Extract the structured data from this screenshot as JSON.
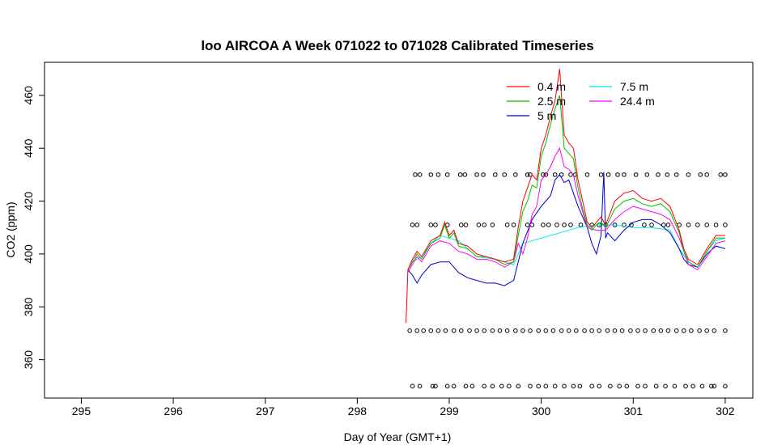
{
  "chart_data": {
    "type": "line",
    "title": "loo AIRCOA A  Week 071022 to 071028  Calibrated Timeseries",
    "xlabel": "Day of Year (GMT+1)",
    "ylabel": "CO2 (ppm)",
    "xlim": [
      294.6,
      302.3
    ],
    "ylim": [
      345.5,
      472.5
    ],
    "x_ticks": [
      295,
      296,
      297,
      298,
      299,
      300,
      301,
      302
    ],
    "y_ticks": [
      360,
      380,
      400,
      420,
      440,
      460
    ],
    "grid": false,
    "legend_position": "top-right",
    "legend": [
      "0.4 m",
      "2.5 m",
      "5 m",
      "7.5 m",
      "24.4 m"
    ],
    "colors": {
      "0.4 m": "#ff0000",
      "2.5 m": "#00c000",
      "5 m": "#0000cc",
      "7.5 m": "#00e5ee",
      "24.4 m": "#ff00ff",
      "markers": "#000000"
    },
    "series": [
      {
        "name": "0.4 m",
        "x": [
          298.53,
          298.55,
          298.6,
          298.65,
          298.7,
          298.8,
          298.9,
          298.95,
          299.0,
          299.05,
          299.1,
          299.2,
          299.3,
          299.4,
          299.5,
          299.6,
          299.7,
          299.75,
          299.8,
          299.85,
          299.9,
          299.95,
          300.0,
          300.05,
          300.1,
          300.15,
          300.2,
          300.25,
          300.3,
          300.35,
          300.4,
          300.45,
          300.5,
          300.55,
          300.6,
          300.65,
          300.7,
          300.8,
          300.9,
          301.0,
          301.1,
          301.2,
          301.3,
          301.4,
          301.5,
          301.55,
          301.6,
          301.7,
          301.8,
          301.9,
          302.0
        ],
        "y": [
          374,
          394,
          398,
          401,
          399,
          405,
          407,
          412,
          407,
          409,
          404,
          403,
          400,
          399,
          398,
          397,
          398,
          410,
          420,
          425,
          430,
          428,
          440,
          445,
          452,
          458,
          470,
          445,
          442,
          440,
          428,
          420,
          412,
          410,
          412,
          414,
          411,
          420,
          423,
          424,
          421,
          420,
          421,
          418,
          409,
          402,
          398,
          396,
          402,
          407,
          407
        ]
      },
      {
        "name": "2.5 m",
        "x": [
          298.55,
          298.6,
          298.65,
          298.7,
          298.8,
          298.9,
          298.95,
          299.0,
          299.05,
          299.1,
          299.2,
          299.3,
          299.4,
          299.5,
          299.6,
          299.7,
          299.75,
          299.8,
          299.85,
          299.9,
          299.95,
          300.0,
          300.05,
          300.1,
          300.15,
          300.2,
          300.25,
          300.3,
          300.35,
          300.4,
          300.45,
          300.5,
          300.55,
          300.6,
          300.65,
          300.7,
          300.8,
          300.9,
          301.0,
          301.1,
          301.2,
          301.3,
          301.4,
          301.5,
          301.55,
          301.6,
          301.7,
          301.8,
          301.9,
          302.0
        ],
        "y": [
          394,
          397,
          400,
          398,
          404,
          406,
          411,
          406,
          408,
          403,
          402,
          399,
          399,
          398,
          396,
          397,
          407,
          416,
          420,
          426,
          425,
          437,
          442,
          449,
          455,
          460,
          440,
          438,
          436,
          425,
          417,
          411,
          409,
          411,
          412,
          410,
          417,
          420,
          421,
          419,
          418,
          419,
          416,
          408,
          401,
          397,
          395,
          401,
          406,
          406
        ]
      },
      {
        "name": "5 m",
        "x": [
          298.55,
          298.6,
          298.65,
          298.7,
          298.8,
          298.9,
          299.0,
          299.1,
          299.2,
          299.3,
          299.4,
          299.5,
          299.6,
          299.7,
          299.75,
          299.8,
          299.9,
          300.0,
          300.1,
          300.15,
          300.2,
          300.25,
          300.3,
          300.4,
          300.5,
          300.55,
          300.6,
          300.65,
          300.68,
          300.7,
          300.72,
          300.8,
          300.9,
          301.0,
          301.1,
          301.2,
          301.3,
          301.4,
          301.5,
          301.55,
          301.6,
          301.7,
          301.8,
          301.9,
          302.0
        ],
        "y": [
          394,
          392,
          389,
          392,
          396,
          397,
          397,
          393,
          391,
          390,
          389,
          389,
          388,
          390,
          397,
          404,
          413,
          418,
          422,
          428,
          430,
          427,
          428,
          418,
          410,
          404,
          400,
          407,
          431,
          406,
          408,
          405,
          409,
          412,
          413,
          413,
          411,
          408,
          402,
          398,
          396,
          395,
          400,
          403,
          402
        ]
      },
      {
        "name": "7.5 m",
        "x": [
          298.55,
          298.6,
          298.7,
          298.8,
          298.9,
          299.0,
          299.1,
          299.2,
          299.3,
          299.5,
          299.7,
          299.8,
          300.0,
          300.2,
          300.4,
          300.6,
          300.8,
          301.0,
          301.2,
          301.4,
          301.5,
          301.6,
          301.7,
          301.8,
          301.9,
          302.0
        ],
        "y": [
          394,
          397,
          399,
          404,
          407,
          406,
          405,
          402,
          399,
          398,
          396,
          404,
          406,
          408,
          410,
          411,
          411,
          410,
          410,
          409,
          402,
          397,
          395,
          401,
          405,
          406
        ]
      },
      {
        "name": "24.4 m",
        "x": [
          298.55,
          298.6,
          298.65,
          298.7,
          298.8,
          298.9,
          299.0,
          299.1,
          299.2,
          299.3,
          299.4,
          299.5,
          299.6,
          299.7,
          299.75,
          299.8,
          299.85,
          299.9,
          299.95,
          300.0,
          300.05,
          300.1,
          300.15,
          300.2,
          300.25,
          300.3,
          300.35,
          300.4,
          300.5,
          300.6,
          300.7,
          300.8,
          300.9,
          301.0,
          301.1,
          301.2,
          301.3,
          301.4,
          301.5,
          301.55,
          301.6,
          301.7,
          301.8,
          301.9,
          302.0
        ],
        "y": [
          393,
          396,
          399,
          397,
          403,
          405,
          404,
          401,
          400,
          398,
          398,
          397,
          395,
          397,
          404,
          400,
          406,
          415,
          418,
          428,
          430,
          433,
          437,
          440,
          433,
          432,
          430,
          422,
          410,
          409,
          409,
          413,
          416,
          418,
          417,
          416,
          415,
          413,
          406,
          401,
          396,
          394,
          399,
          404,
          405
        ]
      }
    ],
    "marker_rows": [
      {
        "y": 430,
        "x": [
          298.63,
          298.68,
          298.8,
          298.88,
          298.98,
          299.12,
          299.17,
          299.3,
          299.37,
          299.5,
          299.6,
          299.72,
          299.85,
          299.88,
          300.02,
          300.05,
          300.15,
          300.22,
          300.32,
          300.37,
          300.5,
          300.65,
          300.73,
          300.83,
          300.9,
          301.03,
          301.15,
          301.27,
          301.37,
          301.47,
          301.6,
          301.73,
          301.8,
          301.95,
          302.0
        ]
      },
      {
        "y": 411,
        "x": [
          298.6,
          298.65,
          298.8,
          298.85,
          298.98,
          299.13,
          299.18,
          299.32,
          299.38,
          299.47,
          299.63,
          299.7,
          299.85,
          299.9,
          300.02,
          300.08,
          300.17,
          300.25,
          300.32,
          300.43,
          300.55,
          300.63,
          300.7,
          300.8,
          300.9,
          300.98,
          301.12,
          301.2,
          301.33,
          301.38,
          301.5,
          301.6,
          301.7,
          301.8,
          301.9,
          302.0
        ]
      },
      {
        "y": 371,
        "x": [
          298.57,
          298.65,
          298.72,
          298.8,
          298.88,
          298.96,
          299.05,
          299.13,
          299.22,
          299.3,
          299.38,
          299.47,
          299.55,
          299.63,
          299.72,
          299.8,
          299.88,
          299.97,
          300.05,
          300.13,
          300.22,
          300.3,
          300.38,
          300.47,
          300.55,
          300.63,
          300.72,
          300.8,
          300.88,
          300.97,
          301.05,
          301.13,
          301.22,
          301.3,
          301.38,
          301.47,
          301.55,
          301.63,
          301.72,
          301.8,
          301.88,
          302.0
        ]
      },
      {
        "y": 350,
        "x": [
          298.6,
          298.68,
          298.82,
          298.85,
          298.98,
          299.05,
          299.18,
          299.25,
          299.38,
          299.47,
          299.57,
          299.65,
          299.75,
          299.88,
          299.97,
          300.05,
          300.15,
          300.25,
          300.35,
          300.42,
          300.55,
          300.63,
          300.75,
          300.85,
          300.93,
          301.05,
          301.13,
          301.25,
          301.35,
          301.45,
          301.57,
          301.65,
          301.75,
          301.85,
          301.88,
          302.0
        ]
      }
    ]
  }
}
